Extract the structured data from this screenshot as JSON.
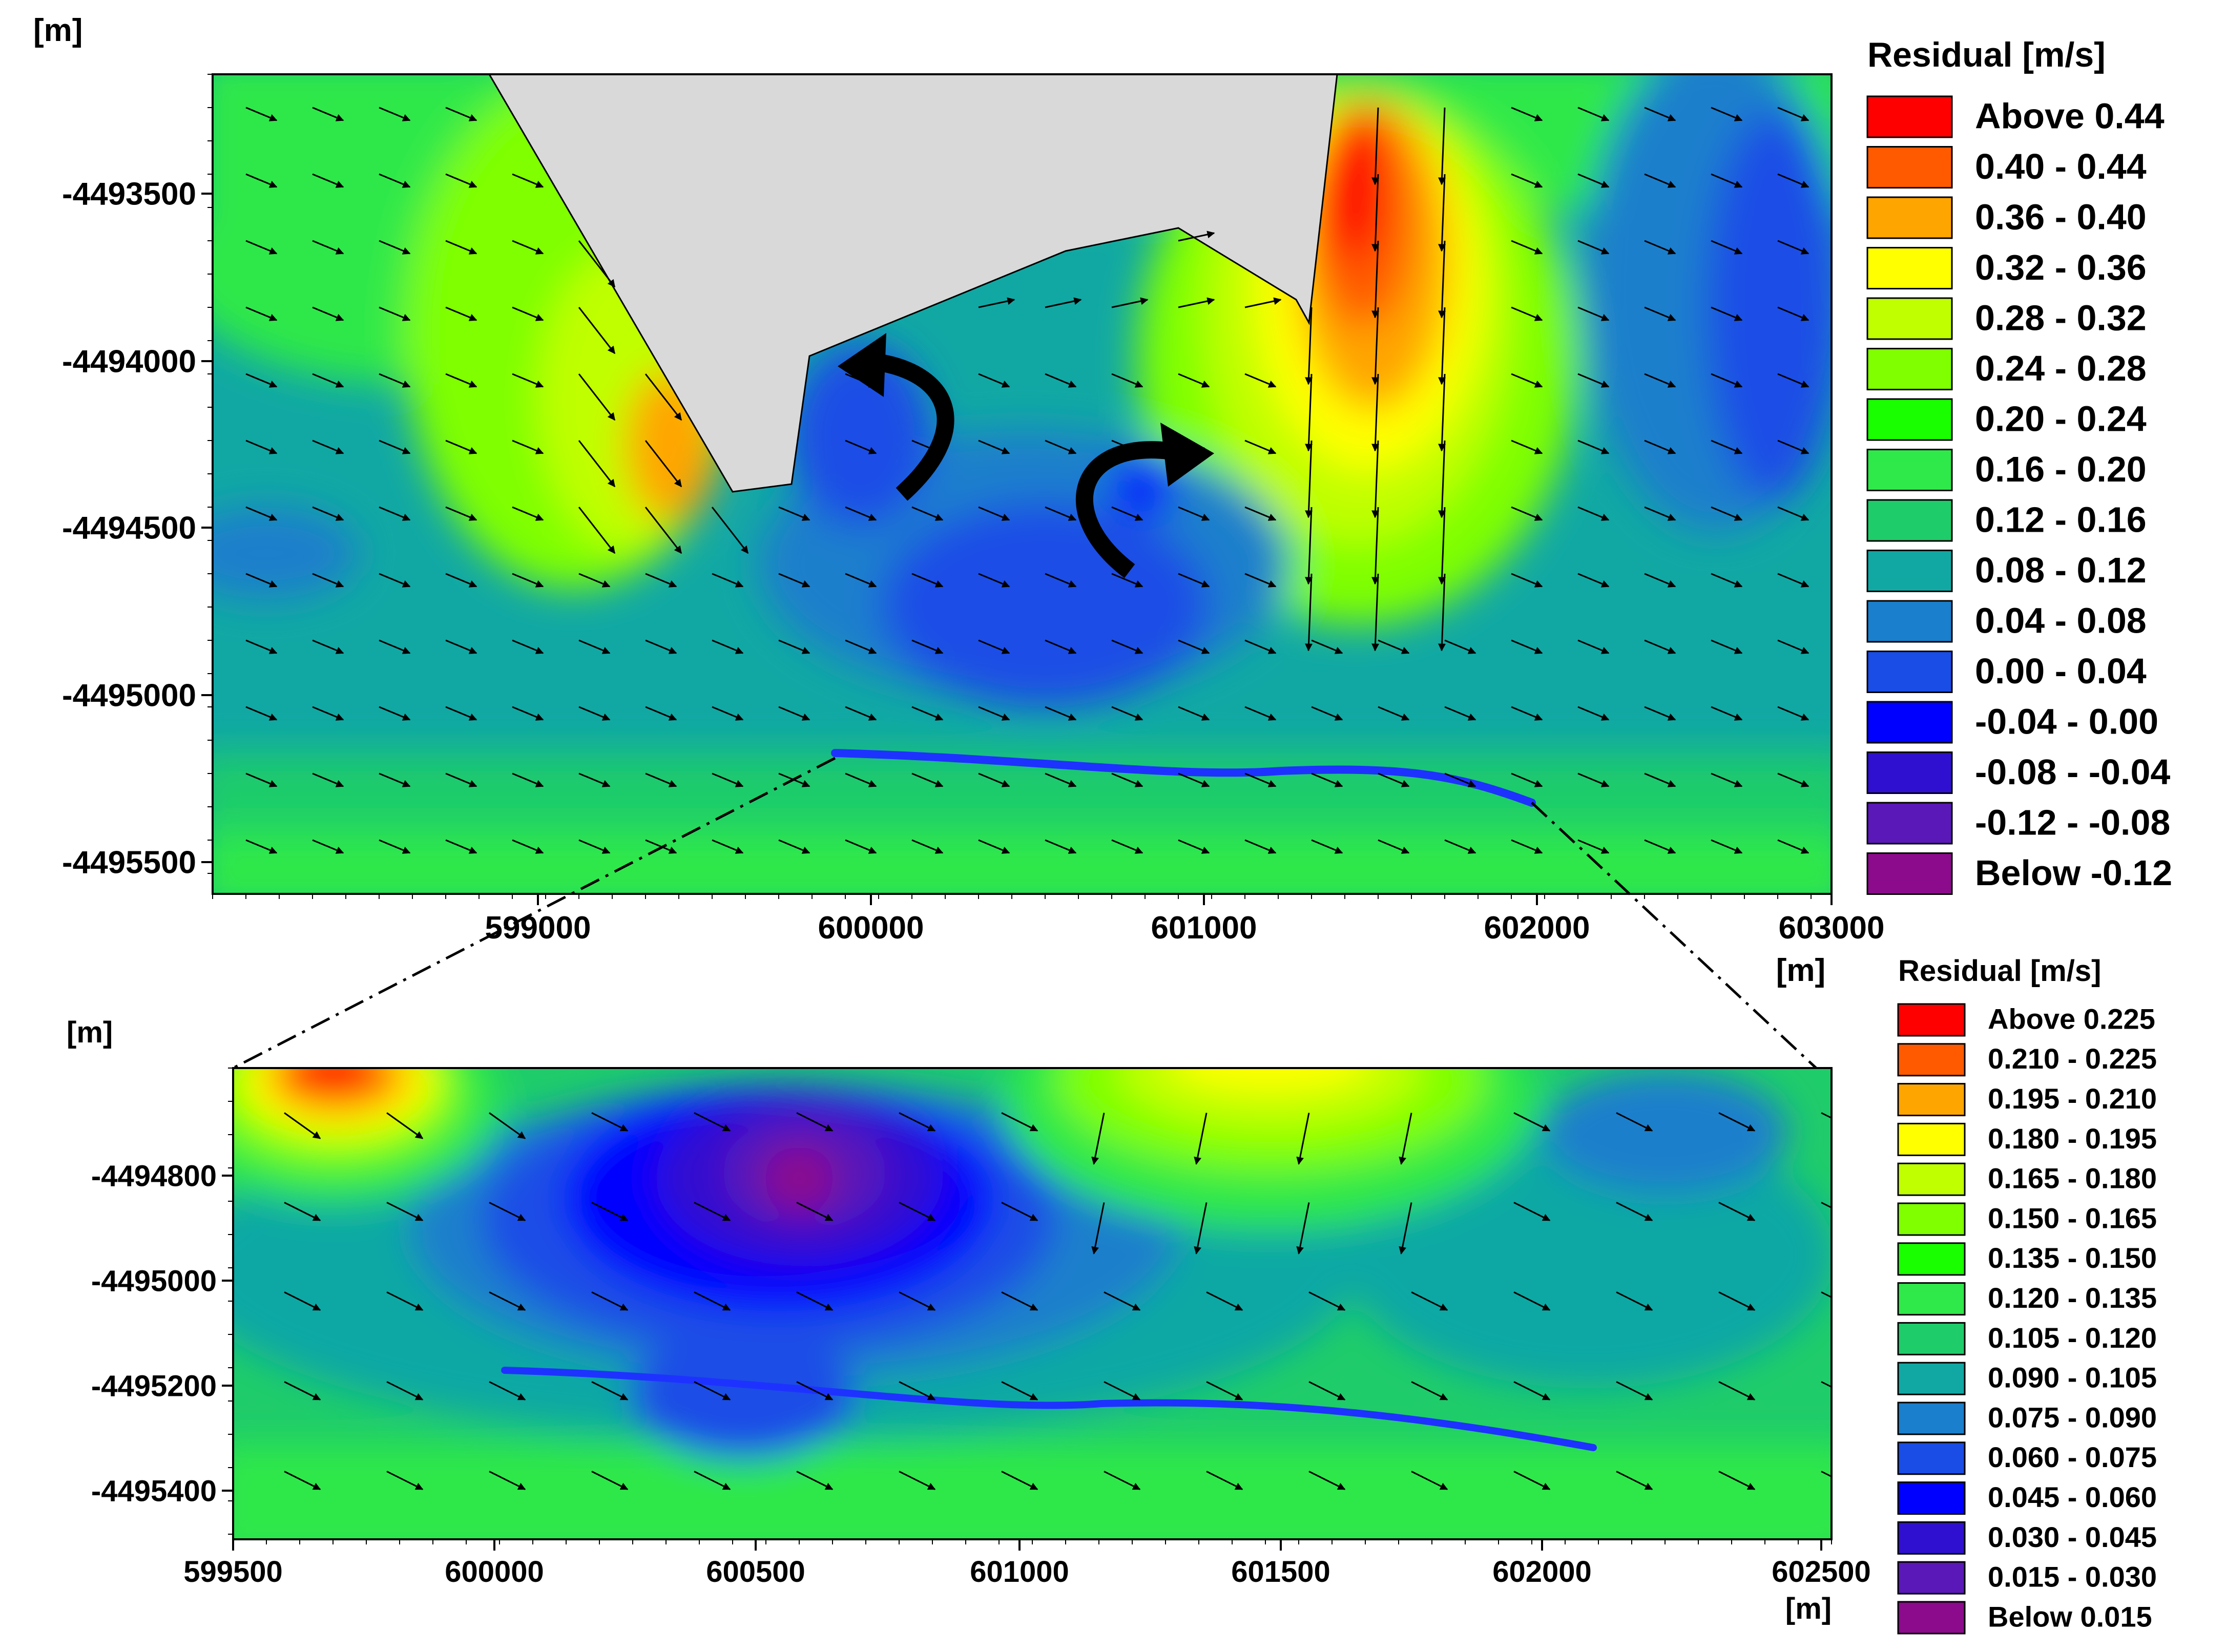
{
  "top_map": {
    "axis_unit_y": "[m]",
    "axis_unit_x": "[m]",
    "y_ticks": [
      "-4493500",
      "-4494000",
      "-4494500",
      "-4495000",
      "-4495500"
    ],
    "x_ticks": [
      "599000",
      "600000",
      "601000",
      "602000",
      "603000"
    ],
    "legend": {
      "title": "Residual [m/s]",
      "entries": [
        {
          "label": "Above  0.44",
          "color": "#ff0000"
        },
        {
          "label": "0.40 -  0.44",
          "color": "#ff5a00"
        },
        {
          "label": "0.36 -  0.40",
          "color": "#ffa500"
        },
        {
          "label": "0.32 -  0.36",
          "color": "#ffff00"
        },
        {
          "label": "0.28 -  0.32",
          "color": "#c0ff00"
        },
        {
          "label": "0.24 -  0.28",
          "color": "#7fff00"
        },
        {
          "label": "0.20 -  0.24",
          "color": "#19ff00"
        },
        {
          "label": "0.16 -  0.20",
          "color": "#2fe84a"
        },
        {
          "label": "0.12 -  0.16",
          "color": "#1fcc6a"
        },
        {
          "label": "0.08 -  0.12",
          "color": "#11a8a4"
        },
        {
          "label": "0.04 -  0.08",
          "color": "#1a7fcc"
        },
        {
          "label": "0.00 -  0.04",
          "color": "#1a4de6"
        },
        {
          "label": "-0.04 -  0.00",
          "color": "#0000ff"
        },
        {
          "label": "-0.08 - -0.04",
          "color": "#3010d0"
        },
        {
          "label": "-0.12 - -0.08",
          "color": "#5a18b8"
        },
        {
          "label": "Below -0.12",
          "color": "#8c0a8c"
        }
      ]
    }
  },
  "bottom_map": {
    "axis_unit_y": "[m]",
    "axis_unit_x": "[m]",
    "y_ticks": [
      "-4494800",
      "-4495000",
      "-4495200",
      "-4495400"
    ],
    "x_ticks": [
      "599500",
      "600000",
      "600500",
      "601000",
      "601500",
      "602000",
      "602500"
    ],
    "legend": {
      "title": "Residual [m/s]",
      "entries": [
        {
          "label": "Above 0.225",
          "color": "#ff0000"
        },
        {
          "label": "0.210 - 0.225",
          "color": "#ff5a00"
        },
        {
          "label": "0.195 - 0.210",
          "color": "#ffa500"
        },
        {
          "label": "0.180 - 0.195",
          "color": "#ffff00"
        },
        {
          "label": "0.165 - 0.180",
          "color": "#c0ff00"
        },
        {
          "label": "0.150 - 0.165",
          "color": "#7fff00"
        },
        {
          "label": "0.135 - 0.150",
          "color": "#19ff00"
        },
        {
          "label": "0.120 - 0.135",
          "color": "#2fe84a"
        },
        {
          "label": "0.105 - 0.120",
          "color": "#1fcc6a"
        },
        {
          "label": "0.090 - 0.105",
          "color": "#11a8a4"
        },
        {
          "label": "0.075 - 0.090",
          "color": "#1a7fcc"
        },
        {
          "label": "0.060 - 0.075",
          "color": "#1a4de6"
        },
        {
          "label": "0.045 - 0.060",
          "color": "#0000ff"
        },
        {
          "label": "0.030 - 0.045",
          "color": "#3010d0"
        },
        {
          "label": "0.015 - 0.030",
          "color": "#5a18b8"
        },
        {
          "label": "Below 0.015",
          "color": "#8c0a8c"
        }
      ]
    }
  }
}
